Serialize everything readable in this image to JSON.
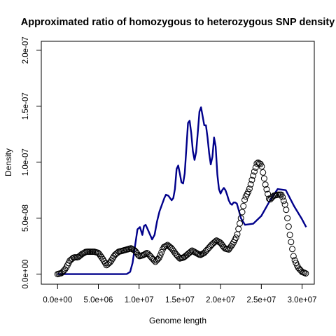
{
  "chart_data": {
    "type": "line",
    "title": "Approximated ratio of homozygous to heterozygous SNP density",
    "xlabel": "Genome length",
    "ylabel": "Density",
    "xlim": [
      -2000000,
      31500000
    ],
    "ylim": [
      -9e-09,
      2.08e-07
    ],
    "x_ticks": [
      0,
      5000000,
      10000000,
      15000000,
      20000000,
      25000000,
      30000000
    ],
    "x_tick_labels": [
      "0.0e+00",
      "5.0e+06",
      "1.0e+07",
      "1.5e+07",
      "2.0e+07",
      "2.5e+07",
      "3.0e+07"
    ],
    "y_ticks": [
      0,
      5e-08,
      1e-07,
      1.5e-07,
      2e-07
    ],
    "y_tick_labels": [
      "0.0e+00",
      "5.0e-08",
      "1.0e-07",
      "1.5e-07",
      "2.0e-07"
    ],
    "grid": false,
    "series": [
      {
        "style": "line",
        "color": "#00008B",
        "x": [
          0,
          1000000,
          2000000,
          3000000,
          4000000,
          5000000,
          6000000,
          7000000,
          8000000,
          8500000,
          8900000,
          9200000,
          9500000,
          9800000,
          10100000,
          10400000,
          10600000,
          10800000,
          11000000,
          11300000,
          11600000,
          11900000,
          12200000,
          12500000,
          12800000,
          13100000,
          13300000,
          13600000,
          13800000,
          14000000,
          14200000,
          14400000,
          14600000,
          14800000,
          15000000,
          15200000,
          15400000,
          15600000,
          15800000,
          16000000,
          16200000,
          16400000,
          16600000,
          16800000,
          17000000,
          17200000,
          17400000,
          17600000,
          17800000,
          18000000,
          18200000,
          18400000,
          18600000,
          18800000,
          19000000,
          19200000,
          19400000,
          19600000,
          19800000,
          20000000,
          20200000,
          20400000,
          20600000,
          20800000,
          21000000,
          21200000,
          21400000,
          21600000,
          21800000,
          22000000,
          22200000,
          22500000,
          23000000,
          24000000,
          25000000,
          26000000,
          27000000,
          28000000,
          29000000,
          30000000,
          30500000
        ],
        "y": [
          0,
          0,
          0,
          0,
          0,
          0,
          0,
          0,
          0,
          1e-10,
          2e-09,
          1e-08,
          2.5e-08,
          4e-08,
          4.2e-08,
          3.5e-08,
          4.3e-08,
          4.4e-08,
          4.1e-08,
          3.6e-08,
          3.1e-08,
          3.5e-08,
          4.7e-08,
          5.6e-08,
          6.2e-08,
          6.8e-08,
          7.1e-08,
          7e-08,
          6.8e-08,
          6.6e-08,
          6.8e-08,
          7.6e-08,
          9.4e-08,
          9.7e-08,
          9e-08,
          8.2e-08,
          8.1e-08,
          9e-08,
          1.12e-07,
          1.35e-07,
          1.37e-07,
          1.26e-07,
          1.1e-07,
          1.02e-07,
          1.09e-07,
          1.26e-07,
          1.45e-07,
          1.49e-07,
          1.41e-07,
          1.33e-07,
          1.33e-07,
          1.22e-07,
          1.08e-07,
          9.8e-08,
          1.05e-07,
          1.22e-07,
          1.14e-07,
          8.9e-08,
          7.6e-08,
          7.2e-08,
          7.5e-08,
          7.7e-08,
          7.5e-08,
          7.1e-08,
          6.6e-08,
          6.3e-08,
          6.2e-08,
          6.4e-08,
          6.4e-08,
          6.3e-08,
          5.8e-08,
          5e-08,
          4.4e-08,
          4.5e-08,
          5.2e-08,
          6.5e-08,
          7.6e-08,
          7.5e-08,
          6.1e-08,
          4.9e-08,
          4.2e-08
        ]
      },
      {
        "style": "points",
        "color": "#000000",
        "x": [
          0,
          500000,
          1000000,
          1500000,
          2000000,
          2500000,
          3000000,
          3500000,
          4000000,
          4500000,
          5000000,
          5500000,
          6000000,
          6500000,
          7000000,
          7500000,
          8000000,
          8500000,
          9000000,
          9500000,
          10000000,
          10500000,
          11000000,
          11500000,
          12000000,
          12500000,
          13000000,
          13500000,
          14000000,
          14500000,
          15000000,
          15500000,
          16000000,
          16500000,
          17000000,
          17500000,
          18000000,
          18500000,
          19000000,
          19500000,
          20000000,
          20500000,
          21000000,
          21500000,
          22000000,
          22500000,
          23000000,
          23500000,
          24000000,
          24500000,
          25000000,
          25500000,
          26000000,
          26500000,
          27000000,
          27500000,
          28000000,
          28500000,
          29000000,
          29500000,
          30000000,
          30500000
        ],
        "y": [
          0,
          1e-09,
          5e-09,
          1.2e-08,
          1.5e-08,
          1.5e-08,
          1.8e-08,
          2e-08,
          2e-08,
          2e-08,
          1.9e-08,
          1.4e-08,
          8e-09,
          1.1e-08,
          1.7e-08,
          2e-08,
          2.1e-08,
          2.2e-08,
          2.3e-08,
          2.1e-08,
          1.6e-08,
          1.7e-08,
          1.9e-08,
          1.5e-08,
          1.1e-08,
          1.5e-08,
          2.4e-08,
          2.6e-08,
          2.3e-08,
          1.8e-08,
          1.4e-08,
          1.5e-08,
          1.8e-08,
          2.1e-08,
          1.9e-08,
          1.7e-08,
          1.9e-08,
          2.3e-08,
          2.7e-08,
          3e-08,
          2.8e-08,
          2.3e-08,
          2.2e-08,
          2.7e-08,
          3.4e-08,
          5e-08,
          6.8e-08,
          7.5e-08,
          8.8e-08,
          1e-07,
          9.8e-08,
          8e-08,
          6.6e-08,
          7e-08,
          7.1e-08,
          7.1e-08,
          6e-08,
          3.5e-08,
          1.4e-08,
          6e-09,
          2e-09,
          5e-10
        ]
      }
    ]
  }
}
